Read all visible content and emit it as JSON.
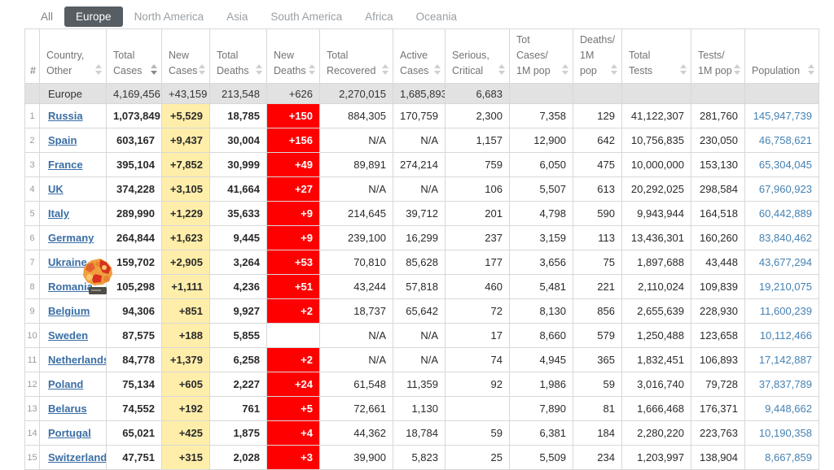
{
  "tabs": [
    {
      "label": "All",
      "active": false
    },
    {
      "label": "Europe",
      "active": true
    },
    {
      "label": "North America",
      "active": false
    },
    {
      "label": "Asia",
      "active": false
    },
    {
      "label": "South America",
      "active": false
    },
    {
      "label": "Africa",
      "active": false
    },
    {
      "label": "Oceania",
      "active": false
    }
  ],
  "sort": {
    "active_column": "total_cases",
    "direction": "desc"
  },
  "columns": [
    {
      "key": "rank",
      "label": "#",
      "sortable": false
    },
    {
      "key": "country",
      "label": "Country,\nOther",
      "sortable": true
    },
    {
      "key": "total_cases",
      "label": "Total\nCases",
      "sortable": true
    },
    {
      "key": "new_cases",
      "label": "New\nCases",
      "sortable": true
    },
    {
      "key": "total_deaths",
      "label": "Total\nDeaths",
      "sortable": true
    },
    {
      "key": "new_deaths",
      "label": "New\nDeaths",
      "sortable": true
    },
    {
      "key": "total_recovered",
      "label": "Total\nRecovered",
      "sortable": true
    },
    {
      "key": "active_cases",
      "label": "Active\nCases",
      "sortable": true
    },
    {
      "key": "serious_critical",
      "label": "Serious,\nCritical",
      "sortable": true
    },
    {
      "key": "cases_1m",
      "label": "Tot Cases/\n1M pop",
      "sortable": true
    },
    {
      "key": "deaths_1m",
      "label": "Deaths/\n1M pop",
      "sortable": true
    },
    {
      "key": "total_tests",
      "label": "Total\nTests",
      "sortable": true
    },
    {
      "key": "tests_1m",
      "label": "Tests/\n1M pop",
      "sortable": true
    },
    {
      "key": "population",
      "label": "Population",
      "sortable": true
    }
  ],
  "continent_row": {
    "rank": "",
    "country": "Europe",
    "total_cases": "4,169,456",
    "new_cases": "+43,159",
    "total_deaths": "213,548",
    "new_deaths": "+626",
    "total_recovered": "2,270,015",
    "active_cases": "1,685,893",
    "serious_critical": "6,683",
    "cases_1m": "",
    "deaths_1m": "",
    "total_tests": "",
    "tests_1m": "",
    "population": ""
  },
  "rows": [
    {
      "rank": "1",
      "country": "Russia",
      "total_cases": "1,073,849",
      "new_cases": "+5,529",
      "total_deaths": "18,785",
      "new_deaths": "+150",
      "total_recovered": "884,305",
      "active_cases": "170,759",
      "serious_critical": "2,300",
      "cases_1m": "7,358",
      "deaths_1m": "129",
      "total_tests": "41,122,307",
      "tests_1m": "281,760",
      "population": "145,947,739"
    },
    {
      "rank": "2",
      "country": "Spain",
      "total_cases": "603,167",
      "new_cases": "+9,437",
      "total_deaths": "30,004",
      "new_deaths": "+156",
      "total_recovered": "N/A",
      "active_cases": "N/A",
      "serious_critical": "1,157",
      "cases_1m": "12,900",
      "deaths_1m": "642",
      "total_tests": "10,756,835",
      "tests_1m": "230,050",
      "population": "46,758,621"
    },
    {
      "rank": "3",
      "country": "France",
      "total_cases": "395,104",
      "new_cases": "+7,852",
      "total_deaths": "30,999",
      "new_deaths": "+49",
      "total_recovered": "89,891",
      "active_cases": "274,214",
      "serious_critical": "759",
      "cases_1m": "6,050",
      "deaths_1m": "475",
      "total_tests": "10,000,000",
      "tests_1m": "153,130",
      "population": "65,304,045"
    },
    {
      "rank": "4",
      "country": "UK",
      "total_cases": "374,228",
      "new_cases": "+3,105",
      "total_deaths": "41,664",
      "new_deaths": "+27",
      "total_recovered": "N/A",
      "active_cases": "N/A",
      "serious_critical": "106",
      "cases_1m": "5,507",
      "deaths_1m": "613",
      "total_tests": "20,292,025",
      "tests_1m": "298,584",
      "population": "67,960,923"
    },
    {
      "rank": "5",
      "country": "Italy",
      "total_cases": "289,990",
      "new_cases": "+1,229",
      "total_deaths": "35,633",
      "new_deaths": "+9",
      "total_recovered": "214,645",
      "active_cases": "39,712",
      "serious_critical": "201",
      "cases_1m": "4,798",
      "deaths_1m": "590",
      "total_tests": "9,943,944",
      "tests_1m": "164,518",
      "population": "60,442,889"
    },
    {
      "rank": "6",
      "country": "Germany",
      "total_cases": "264,844",
      "new_cases": "+1,623",
      "total_deaths": "9,445",
      "new_deaths": "+9",
      "total_recovered": "239,100",
      "active_cases": "16,299",
      "serious_critical": "237",
      "cases_1m": "3,159",
      "deaths_1m": "113",
      "total_tests": "13,436,301",
      "tests_1m": "160,260",
      "population": "83,840,462"
    },
    {
      "rank": "7",
      "country": "Ukraine",
      "total_cases": "159,702",
      "new_cases": "+2,905",
      "total_deaths": "3,264",
      "new_deaths": "+53",
      "total_recovered": "70,810",
      "active_cases": "85,628",
      "serious_critical": "177",
      "cases_1m": "3,656",
      "deaths_1m": "75",
      "total_tests": "1,897,688",
      "tests_1m": "43,448",
      "population": "43,677,294"
    },
    {
      "rank": "8",
      "country": "Romania",
      "total_cases": "105,298",
      "new_cases": "+1,111",
      "total_deaths": "4,236",
      "new_deaths": "+51",
      "total_recovered": "43,244",
      "active_cases": "57,818",
      "serious_critical": "460",
      "cases_1m": "5,481",
      "deaths_1m": "221",
      "total_tests": "2,110,024",
      "tests_1m": "109,839",
      "population": "19,210,075"
    },
    {
      "rank": "9",
      "country": "Belgium",
      "total_cases": "94,306",
      "new_cases": "+851",
      "total_deaths": "9,927",
      "new_deaths": "+2",
      "total_recovered": "18,737",
      "active_cases": "65,642",
      "serious_critical": "72",
      "cases_1m": "8,130",
      "deaths_1m": "856",
      "total_tests": "2,655,639",
      "tests_1m": "228,930",
      "population": "11,600,239"
    },
    {
      "rank": "10",
      "country": "Sweden",
      "total_cases": "87,575",
      "new_cases": "+188",
      "total_deaths": "5,855",
      "new_deaths": "",
      "total_recovered": "N/A",
      "active_cases": "N/A",
      "serious_critical": "17",
      "cases_1m": "8,660",
      "deaths_1m": "579",
      "total_tests": "1,250,488",
      "tests_1m": "123,658",
      "population": "10,112,466"
    },
    {
      "rank": "11",
      "country": "Netherlands",
      "total_cases": "84,778",
      "new_cases": "+1,379",
      "total_deaths": "6,258",
      "new_deaths": "+2",
      "total_recovered": "N/A",
      "active_cases": "N/A",
      "serious_critical": "74",
      "cases_1m": "4,945",
      "deaths_1m": "365",
      "total_tests": "1,832,451",
      "tests_1m": "106,893",
      "population": "17,142,887"
    },
    {
      "rank": "12",
      "country": "Poland",
      "total_cases": "75,134",
      "new_cases": "+605",
      "total_deaths": "2,227",
      "new_deaths": "+24",
      "total_recovered": "61,548",
      "active_cases": "11,359",
      "serious_critical": "92",
      "cases_1m": "1,986",
      "deaths_1m": "59",
      "total_tests": "3,016,740",
      "tests_1m": "79,728",
      "population": "37,837,789"
    },
    {
      "rank": "13",
      "country": "Belarus",
      "total_cases": "74,552",
      "new_cases": "+192",
      "total_deaths": "761",
      "new_deaths": "+5",
      "total_recovered": "72,661",
      "active_cases": "1,130",
      "serious_critical": "",
      "cases_1m": "7,890",
      "deaths_1m": "81",
      "total_tests": "1,666,468",
      "tests_1m": "176,371",
      "population": "9,448,662"
    },
    {
      "rank": "14",
      "country": "Portugal",
      "total_cases": "65,021",
      "new_cases": "+425",
      "total_deaths": "1,875",
      "new_deaths": "+4",
      "total_recovered": "44,362",
      "active_cases": "18,784",
      "serious_critical": "59",
      "cases_1m": "6,381",
      "deaths_1m": "184",
      "total_tests": "2,280,220",
      "tests_1m": "223,763",
      "population": "10,190,358"
    },
    {
      "rank": "15",
      "country": "Switzerland",
      "total_cases": "47,751",
      "new_cases": "+315",
      "total_deaths": "2,028",
      "new_deaths": "+3",
      "total_recovered": "39,900",
      "active_cases": "5,823",
      "serious_critical": "25",
      "cases_1m": "5,509",
      "deaths_1m": "234",
      "total_tests": "1,203,997",
      "tests_1m": "138,904",
      "population": "8,667,859"
    }
  ],
  "colors": {
    "new_cases_bg": "#FFEEAA",
    "new_deaths_bg": "#FF0000",
    "country_link": "#3A6EA5",
    "population_link": "#4582B4",
    "active_tab_bg": "#565D63",
    "continent_row_bg": "#E2E2E2"
  }
}
